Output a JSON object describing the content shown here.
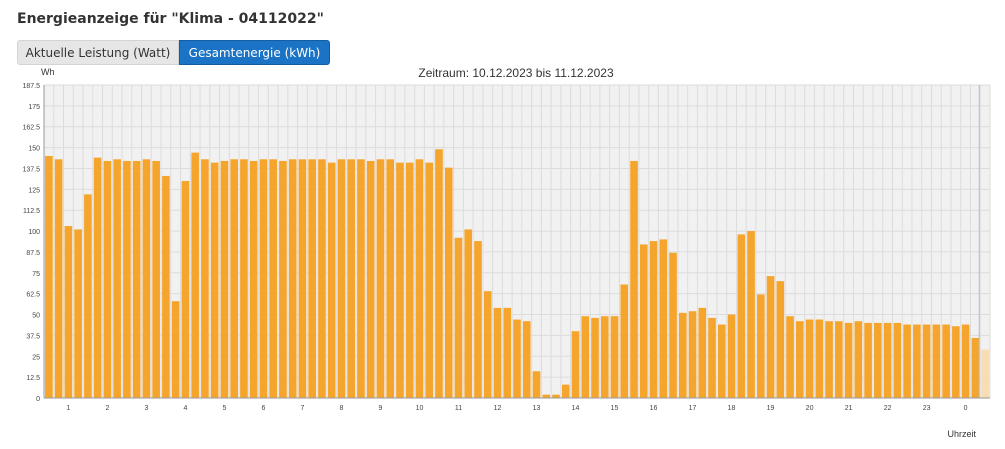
{
  "heading": "Energieanzeige für \"Klima - 04112022\"",
  "tabs": [
    {
      "label": "Aktuelle Leistung (Watt)",
      "active": false
    },
    {
      "label": "Gesamtenergie (kWh)",
      "active": true
    }
  ],
  "colors": {
    "bar": "#f5a52c",
    "bar_partial": "#f7dcb4",
    "plot_background": "#f1f1f1",
    "grid": "#dcdcdc",
    "current_marker": "#a8c0d8"
  },
  "chart_data": {
    "type": "bar",
    "title": "Zeitraum: 10.12.2023 bis 11.12.2023",
    "ylabel": "Wh",
    "xlabel": "Uhrzeit",
    "ylim": [
      0,
      187.5
    ],
    "y_ticks": [
      "0",
      "12.5",
      "25",
      "37.5",
      "50",
      "62.5",
      "75",
      "87.5",
      "100",
      "112.5",
      "125",
      "137.5",
      "150",
      "162.5",
      "175",
      "187.5"
    ],
    "x_tick_labels": [
      "1",
      "2",
      "3",
      "4",
      "5",
      "6",
      "7",
      "8",
      "9",
      "10",
      "11",
      "12",
      "13",
      "14",
      "15",
      "16",
      "17",
      "18",
      "19",
      "20",
      "21",
      "22",
      "23",
      "0"
    ],
    "values": [
      145,
      143,
      103,
      101,
      122,
      144,
      142,
      143,
      142,
      142,
      143,
      142,
      133,
      58,
      130,
      147,
      143,
      141,
      142,
      143,
      143,
      142,
      143,
      143,
      142,
      143,
      143,
      143,
      143,
      141,
      143,
      143,
      143,
      142,
      143,
      143,
      141,
      141,
      143,
      141,
      149,
      138,
      96,
      101,
      94,
      64,
      54,
      54,
      47,
      46,
      16,
      2,
      2,
      8,
      40,
      49,
      48,
      49,
      49,
      68,
      142,
      92,
      94,
      95,
      87,
      51,
      52,
      54,
      48,
      44,
      50,
      98,
      100,
      62,
      73,
      70,
      49,
      46,
      47,
      47,
      46,
      46,
      45,
      46,
      45,
      45,
      45,
      45,
      44,
      44,
      44,
      44,
      44,
      43,
      44,
      36,
      29
    ],
    "partial_last_bar": true
  }
}
